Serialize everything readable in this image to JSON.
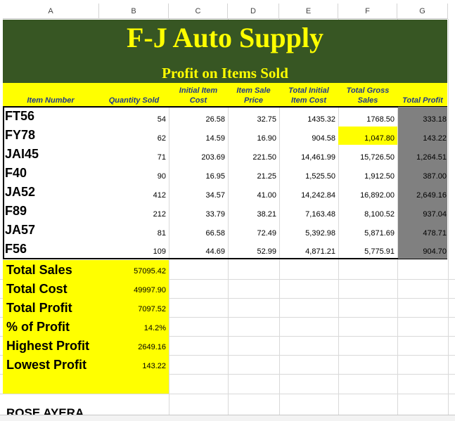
{
  "columns": [
    "A",
    "B",
    "C",
    "D",
    "E",
    "F",
    "G"
  ],
  "title": "F-J Auto Supply",
  "subtitle": "Profit on Items Sold",
  "headers": {
    "item_number": "Item Number",
    "quantity_sold": "Quantity Sold",
    "initial_item_cost_1": "Initial Item",
    "initial_item_cost_2": "Cost",
    "item_sale_price_1": "Item Sale",
    "item_sale_price_2": "Price",
    "total_initial_cost_1": "Total Initial",
    "total_initial_cost_2": "Item Cost",
    "total_gross_sales_1": "Total Gross",
    "total_gross_sales_2": "Sales",
    "total_profit": "Total Profit"
  },
  "rows": [
    {
      "item": "FT56",
      "qty": "54",
      "cost": "26.58",
      "price": "32.75",
      "total_cost": "1435.32",
      "gross": "1768.50",
      "profit": "333.18"
    },
    {
      "item": "FY78",
      "qty": "62",
      "cost": "14.59",
      "price": "16.90",
      "total_cost": "904.58",
      "gross": "1,047.80",
      "profit": "143.22"
    },
    {
      "item": "JAI45",
      "qty": "71",
      "cost": "203.69",
      "price": "221.50",
      "total_cost": "14,461.99",
      "gross": "15,726.50",
      "profit": "1,264.51"
    },
    {
      "item": "F40",
      "qty": "90",
      "cost": "16.95",
      "price": "21.25",
      "total_cost": "1,525.50",
      "gross": "1,912.50",
      "profit": "387.00"
    },
    {
      "item": "JA52",
      "qty": "412",
      "cost": "34.57",
      "price": "41.00",
      "total_cost": "14,242.84",
      "gross": "16,892.00",
      "profit": "2,649.16"
    },
    {
      "item": "F89",
      "qty": "212",
      "cost": "33.79",
      "price": "38.21",
      "total_cost": "7,163.48",
      "gross": "8,100.52",
      "profit": "937.04"
    },
    {
      "item": "JA57",
      "qty": "81",
      "cost": "66.58",
      "price": "72.49",
      "total_cost": "5,392.98",
      "gross": "5,871.69",
      "profit": "478.71"
    },
    {
      "item": "F56",
      "qty": "109",
      "cost": "44.69",
      "price": "52.99",
      "total_cost": "4,871.21",
      "gross": "5,775.91",
      "profit": "904.70"
    }
  ],
  "summary": [
    {
      "label": "Total Sales",
      "value": "57095.42"
    },
    {
      "label": "Total Cost",
      "value": "49997.90"
    },
    {
      "label": "Total Profit",
      "value": "7097.52"
    },
    {
      "label": "% of Profit",
      "value": "14.2%"
    },
    {
      "label": "Highest Profit",
      "value": "2649.16"
    },
    {
      "label": "Lowest Profit",
      "value": "143.22"
    }
  ],
  "footer_text": "ROSE AYERA",
  "colors": {
    "banner": "#375623",
    "title": "#ffff00",
    "header_band": "#ffff00",
    "header_text": "#1f3a8a",
    "profit_col": "#808080",
    "highlight": "#ffff00"
  }
}
